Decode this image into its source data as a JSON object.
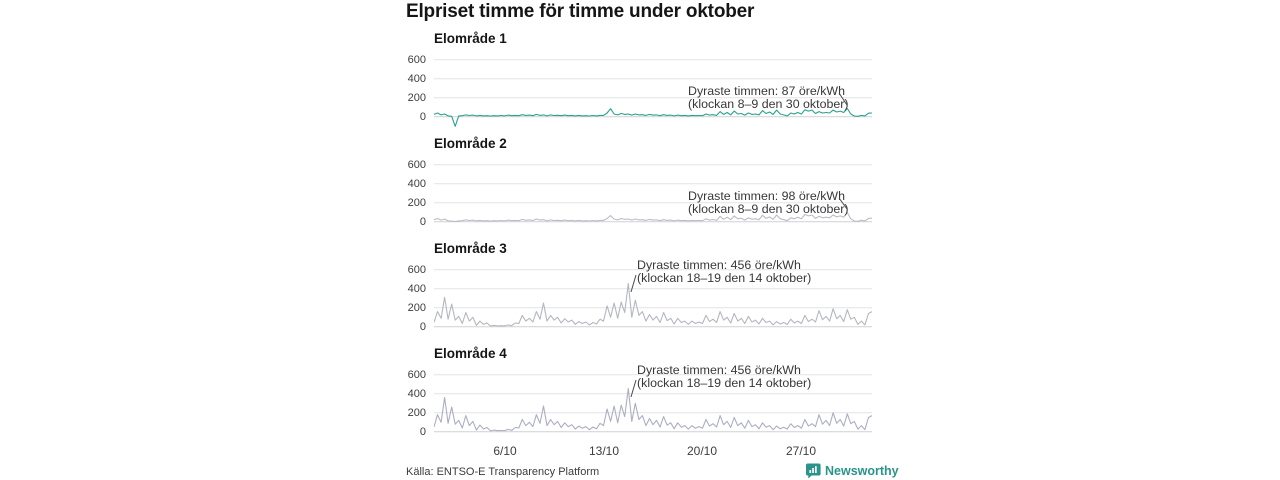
{
  "header": {
    "title": "Elpriset timme för timme under oktober"
  },
  "yaxis": {
    "tick_labels": [
      "600",
      "400",
      "200",
      "0"
    ],
    "tick_values": [
      600,
      400,
      200,
      0
    ]
  },
  "xaxis": {
    "tick_labels": [
      "6/10",
      "13/10",
      "20/10",
      "27/10"
    ]
  },
  "footer": {
    "source": "Källa: ENTSO-E Transparency Platform",
    "logo_text": "Newsworthy"
  },
  "colors": {
    "accent_teal": "#2aa18e",
    "muted_line": "#b3b7bf",
    "gridline": "#e4e4e8",
    "brand_teal": "#2a948a"
  },
  "chart_data": [
    {
      "type": "line",
      "title": "Elområde 1",
      "unit": "öre/kWh",
      "color": "#2aa18e",
      "ylim": [
        -160,
        640
      ],
      "yticks": [
        0,
        200,
        400,
        600
      ],
      "x_ticks": [
        "6/10",
        "13/10",
        "20/10",
        "27/10"
      ],
      "annotation": {
        "line1": "Dyraste timmen: 87 öre/kWh",
        "line2": "(klockan 8–9 den 30 oktober)"
      },
      "values": [
        25,
        40,
        20,
        30,
        10,
        5,
        -100,
        10,
        12,
        20,
        14,
        18,
        10,
        15,
        10,
        12,
        8,
        12,
        10,
        14,
        10,
        18,
        12,
        15,
        12,
        22,
        15,
        18,
        12,
        25,
        15,
        20,
        10,
        20,
        14,
        16,
        12,
        18,
        12,
        15,
        10,
        15,
        10,
        12,
        8,
        14,
        10,
        15,
        15,
        40,
        85,
        30,
        20,
        35,
        25,
        30,
        18,
        30,
        20,
        22,
        15,
        25,
        18,
        20,
        12,
        22,
        15,
        18,
        10,
        18,
        12,
        15,
        10,
        15,
        12,
        14,
        12,
        30,
        18,
        22,
        15,
        55,
        25,
        45,
        20,
        60,
        30,
        35,
        18,
        40,
        25,
        30,
        20,
        65,
        35,
        50,
        25,
        70,
        30,
        20,
        10,
        40,
        30,
        45,
        30,
        75,
        60,
        70,
        35,
        55,
        40,
        45,
        40,
        70,
        50,
        60,
        45,
        87,
        30,
        8,
        5,
        15,
        10,
        38,
        40
      ]
    },
    {
      "type": "line",
      "title": "Elområde 2",
      "unit": "öre/kWh",
      "color": "#b8bcc5",
      "ylim": [
        -160,
        640
      ],
      "yticks": [
        0,
        200,
        400,
        600
      ],
      "x_ticks": [
        "6/10",
        "13/10",
        "20/10",
        "27/10"
      ],
      "annotation": {
        "line1": "Dyraste timmen: 98 öre/kWh",
        "line2": "(klockan 8–9 den 30 oktober)"
      },
      "values": [
        22,
        35,
        18,
        28,
        10,
        8,
        2,
        10,
        12,
        20,
        14,
        18,
        10,
        15,
        10,
        12,
        8,
        12,
        10,
        14,
        10,
        18,
        12,
        15,
        12,
        25,
        16,
        20,
        14,
        30,
        18,
        22,
        10,
        20,
        14,
        16,
        12,
        18,
        12,
        15,
        10,
        15,
        10,
        12,
        8,
        14,
        10,
        15,
        15,
        35,
        65,
        28,
        20,
        35,
        25,
        30,
        18,
        30,
        20,
        22,
        15,
        25,
        18,
        20,
        12,
        22,
        15,
        18,
        10,
        18,
        12,
        15,
        10,
        15,
        12,
        14,
        12,
        32,
        18,
        24,
        15,
        58,
        26,
        48,
        22,
        62,
        32,
        38,
        18,
        42,
        26,
        32,
        22,
        68,
        36,
        52,
        26,
        72,
        32,
        22,
        12,
        42,
        32,
        48,
        32,
        78,
        62,
        72,
        36,
        58,
        42,
        48,
        42,
        72,
        52,
        62,
        48,
        98,
        32,
        8,
        5,
        16,
        10,
        36,
        38
      ]
    },
    {
      "type": "line",
      "title": "Elområde 3",
      "unit": "öre/kWh",
      "color": "#b3b7bf",
      "ylim": [
        -160,
        640
      ],
      "yticks": [
        0,
        200,
        400,
        600
      ],
      "x_ticks": [
        "6/10",
        "13/10",
        "20/10",
        "27/10"
      ],
      "annotation": {
        "line1": "Dyraste timmen: 456 öre/kWh",
        "line2": "(klockan 18–19 den 14 oktober)"
      },
      "values": [
        45,
        160,
        90,
        310,
        80,
        240,
        70,
        110,
        35,
        150,
        60,
        100,
        15,
        60,
        25,
        40,
        8,
        15,
        10,
        12,
        10,
        20,
        12,
        40,
        35,
        120,
        60,
        90,
        50,
        160,
        80,
        250,
        60,
        120,
        70,
        100,
        40,
        85,
        50,
        70,
        25,
        55,
        35,
        50,
        20,
        45,
        30,
        80,
        60,
        220,
        100,
        250,
        90,
        260,
        150,
        456,
        100,
        280,
        120,
        160,
        60,
        130,
        70,
        110,
        45,
        150,
        65,
        90,
        30,
        90,
        45,
        60,
        25,
        60,
        35,
        50,
        35,
        120,
        55,
        80,
        45,
        160,
        70,
        100,
        40,
        140,
        60,
        90,
        35,
        110,
        50,
        70,
        30,
        90,
        45,
        60,
        20,
        55,
        30,
        45,
        25,
        80,
        40,
        60,
        35,
        120,
        55,
        80,
        50,
        170,
        75,
        110,
        60,
        190,
        85,
        120,
        55,
        180,
        80,
        100,
        25,
        60,
        20,
        140,
        160
      ]
    },
    {
      "type": "line",
      "title": "Elområde 4",
      "unit": "öre/kWh",
      "color": "#abaec3",
      "ylim": [
        -160,
        640
      ],
      "yticks": [
        0,
        200,
        400,
        600
      ],
      "x_ticks": [
        "6/10",
        "13/10",
        "20/10",
        "27/10"
      ],
      "annotation": {
        "line1": "Dyraste timmen: 456 öre/kWh",
        "line2": "(klockan 18–19 den 14 oktober)"
      },
      "values": [
        50,
        180,
        100,
        360,
        90,
        260,
        80,
        120,
        40,
        170,
        65,
        110,
        18,
        70,
        30,
        45,
        10,
        18,
        12,
        14,
        12,
        25,
        15,
        45,
        40,
        130,
        65,
        100,
        55,
        180,
        90,
        270,
        65,
        130,
        75,
        110,
        45,
        95,
        55,
        75,
        28,
        60,
        38,
        55,
        22,
        50,
        32,
        90,
        65,
        240,
        110,
        270,
        95,
        280,
        160,
        456,
        110,
        300,
        130,
        170,
        65,
        140,
        75,
        120,
        50,
        160,
        70,
        95,
        32,
        95,
        48,
        65,
        28,
        65,
        38,
        55,
        38,
        130,
        60,
        85,
        50,
        170,
        75,
        110,
        45,
        150,
        65,
        95,
        38,
        120,
        55,
        75,
        32,
        95,
        48,
        65,
        22,
        60,
        32,
        48,
        28,
        85,
        45,
        65,
        38,
        130,
        60,
        85,
        55,
        180,
        80,
        120,
        65,
        200,
        90,
        130,
        60,
        190,
        85,
        110,
        28,
        65,
        22,
        150,
        170
      ]
    }
  ]
}
